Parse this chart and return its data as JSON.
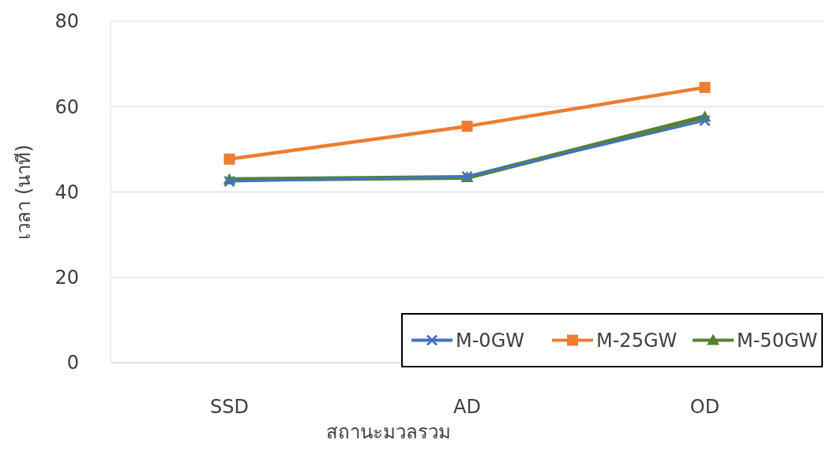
{
  "chart_data": {
    "type": "line",
    "xlabel": "สถานะมวลรวม",
    "ylabel": "เวลา (นาที)",
    "categories": [
      "SSD",
      "AD",
      "OD"
    ],
    "series": [
      {
        "name": "M-0GW",
        "color": "#4472c4",
        "marker": "cross",
        "values": [
          42.5,
          43.6,
          56.7
        ]
      },
      {
        "name": "M-25GW",
        "color": "#ed7d31",
        "marker": "square",
        "values": [
          47.7,
          55.4,
          64.5
        ]
      },
      {
        "name": "M-50GW",
        "color": "#548235",
        "marker": "triangle",
        "values": [
          42.9,
          43.4,
          57.6
        ]
      }
    ],
    "ylim": [
      0,
      80
    ],
    "yticks": [
      0,
      20,
      40,
      60,
      80
    ],
    "grid": "y",
    "legend": "bottom right"
  }
}
